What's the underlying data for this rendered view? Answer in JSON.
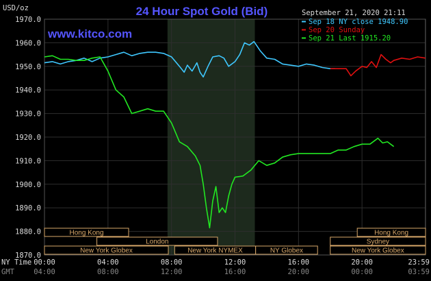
{
  "chart_data": {
    "type": "line",
    "title": "24 Hour Spot Gold (Bid)",
    "ylabel": "USD/oz",
    "watermark": "www.kitco.com",
    "timestamp": "September 21, 2020 21:11",
    "ylim": [
      1870,
      1970
    ],
    "xlim": [
      0,
      24
    ],
    "y_ticks": [
      "1970.0",
      "1960.0",
      "1950.0",
      "1940.0",
      "1930.0",
      "1920.0",
      "1910.0",
      "1900.0",
      "1890.0",
      "1880.0",
      "1870.0"
    ],
    "y_tick_values": [
      1970,
      1960,
      1950,
      1940,
      1930,
      1920,
      1910,
      1900,
      1890,
      1880,
      1870
    ],
    "x_tick_hours": [
      0,
      4,
      8,
      12,
      16,
      20,
      23.983
    ],
    "x_labels_ny": [
      "00:00",
      "04:00",
      "08:00",
      "12:00",
      "16:00",
      "20:00",
      "23:59"
    ],
    "x_labels_gmt": [
      "04:00",
      "08:00",
      "12:00",
      "16:00",
      "20:00",
      "00:00",
      "03:59"
    ],
    "x_row_labels": [
      "NY Time",
      "GMT"
    ],
    "legend": [
      {
        "label": "Sep 18 NY close 1948.90",
        "color": "#3fc8ff"
      },
      {
        "label": "Sep 20 Sunday",
        "color": "#e01010"
      },
      {
        "label": "Sep 21 Last 1915.20",
        "color": "#22e822"
      }
    ],
    "session_shading": {
      "start": 7.75,
      "end": 13.25,
      "color": "#1d2a1d"
    },
    "series": [
      {
        "name": "Sep 18",
        "color": "#3fc8ff",
        "x": [
          0,
          0.5,
          1,
          1.5,
          2,
          2.5,
          3,
          3.5,
          4,
          4.5,
          5,
          5.5,
          6,
          6.5,
          7,
          7.5,
          8,
          8.5,
          8.8,
          9,
          9.3,
          9.6,
          9.8,
          10,
          10.3,
          10.6,
          11,
          11.3,
          11.6,
          12,
          12.3,
          12.6,
          12.9,
          13.2,
          13.6,
          14,
          14.5,
          15,
          15.5,
          16,
          16.5,
          17,
          17.5,
          18,
          18.3
        ],
        "values": [
          1951.5,
          1952.0,
          1951.0,
          1952.0,
          1952.5,
          1953.5,
          1952.0,
          1953.5,
          1954.0,
          1955.0,
          1956.0,
          1954.5,
          1955.5,
          1956.0,
          1956.0,
          1955.5,
          1954.0,
          1950.0,
          1947.5,
          1950.5,
          1948.0,
          1951.5,
          1947.5,
          1945.5,
          1950.0,
          1954.0,
          1954.5,
          1953.5,
          1950.0,
          1952.0,
          1955.0,
          1960.0,
          1959.0,
          1960.5,
          1956.5,
          1953.5,
          1953.0,
          1951.0,
          1950.5,
          1950.0,
          1951.0,
          1950.5,
          1949.5,
          1949.0,
          1949.0
        ]
      },
      {
        "name": "Sep 20",
        "color": "#e01010",
        "x": [
          18,
          18.5,
          19,
          19.3,
          19.6,
          20,
          20.3,
          20.6,
          20.9,
          21.2,
          21.5,
          21.8,
          22,
          22.5,
          23,
          23.5,
          24
        ],
        "values": [
          1949.0,
          1949.0,
          1949.0,
          1946.0,
          1948.0,
          1950.0,
          1949.5,
          1952.0,
          1949.5,
          1955.0,
          1953.0,
          1951.5,
          1952.5,
          1953.5,
          1953.0,
          1954.0,
          1953.5
        ]
      },
      {
        "name": "Sep 21",
        "color": "#22e822",
        "x": [
          0,
          0.5,
          1,
          1.5,
          2,
          2.5,
          3,
          3.5,
          4,
          4.5,
          5,
          5.5,
          6,
          6.5,
          7,
          7.5,
          8,
          8.5,
          9,
          9.5,
          9.8,
          10,
          10.2,
          10.4,
          10.6,
          10.8,
          11,
          11.2,
          11.4,
          11.6,
          11.8,
          12,
          12.5,
          13,
          13.5,
          14,
          14.5,
          15,
          15.5,
          16,
          16.5,
          17,
          17.5,
          18,
          18.5,
          19,
          19.5,
          20,
          20.5,
          21,
          21.3,
          21.6,
          22
        ],
        "values": [
          1954.0,
          1954.5,
          1953.0,
          1953.0,
          1952.5,
          1952.5,
          1953.5,
          1954.0,
          1948.0,
          1940.0,
          1937.0,
          1930.0,
          1931.0,
          1932.0,
          1931.0,
          1931.0,
          1926.0,
          1918.0,
          1916.0,
          1912.0,
          1908.0,
          1900.0,
          1890.0,
          1881.5,
          1893.0,
          1899.0,
          1888.0,
          1890.0,
          1888.0,
          1895.0,
          1900.0,
          1903.0,
          1903.5,
          1906.0,
          1910.0,
          1908.0,
          1909.0,
          1911.5,
          1912.5,
          1913.0,
          1913.0,
          1913.0,
          1913.0,
          1913.0,
          1914.5,
          1914.5,
          1916.0,
          1917.0,
          1917.0,
          1919.5,
          1917.5,
          1918.0,
          1916.0
        ]
      }
    ],
    "markets": [
      {
        "label": "Hong Kong",
        "start": 0,
        "end": 5.3,
        "row": 0
      },
      {
        "label": "Hong Kong",
        "start": 19.7,
        "end": 24,
        "row": 0
      },
      {
        "label": "London",
        "start": 3.3,
        "end": 10.9,
        "row": 1
      },
      {
        "label": "Sydney",
        "start": 18.0,
        "end": 24,
        "row": 1
      },
      {
        "label": "New York Globex",
        "start": 0,
        "end": 7.8,
        "row": 2
      },
      {
        "label": "New York NYMEX",
        "start": 8.2,
        "end": 13.3,
        "row": 2
      },
      {
        "label": "NY Globex",
        "start": 13.3,
        "end": 17.2,
        "row": 2
      },
      {
        "label": "New York Globex",
        "start": 18.0,
        "end": 24,
        "row": 2
      }
    ]
  }
}
